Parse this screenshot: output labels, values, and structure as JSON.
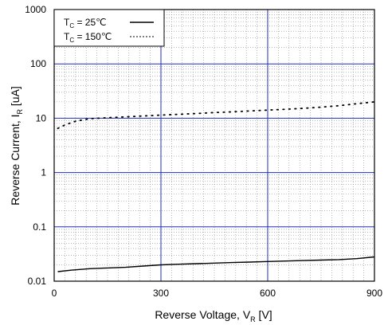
{
  "chart_data": {
    "type": "line",
    "xlabel": {
      "text": "Reverse Voltage, V",
      "sub": "R",
      "unit": " [V]"
    },
    "ylabel": {
      "text": "Reverse Current, I",
      "sub": "R",
      "unit": " [uA]"
    },
    "xlim": [
      0,
      900
    ],
    "ylim": [
      0.01,
      1000
    ],
    "yscale": "log",
    "x_ticks": [
      0,
      300,
      600,
      900
    ],
    "x_tick_labels": [
      "0",
      "300",
      "600",
      "900"
    ],
    "y_ticks": [
      0.01,
      0.1,
      1,
      10,
      100,
      1000
    ],
    "y_tick_labels": [
      "0.01",
      "0.1",
      "1",
      "10",
      "100",
      "1000"
    ],
    "grid": {
      "major": true,
      "minor": true,
      "major_color": "#1f2fbf",
      "minor_color": "#8a8a8a"
    },
    "legend_position": "top-left",
    "series": [
      {
        "legend_prefix": "T",
        "legend_sub": "C",
        "legend_value": " =   25℃",
        "style": "solid",
        "color": "#000000",
        "x": [
          10,
          50,
          100,
          150,
          200,
          250,
          300,
          350,
          400,
          450,
          500,
          550,
          600,
          650,
          700,
          750,
          800,
          850,
          900
        ],
        "y": [
          0.015,
          0.016,
          0.017,
          0.0175,
          0.018,
          0.019,
          0.02,
          0.0205,
          0.021,
          0.0215,
          0.022,
          0.0225,
          0.023,
          0.0235,
          0.024,
          0.0245,
          0.025,
          0.026,
          0.028
        ]
      },
      {
        "legend_prefix": "T",
        "legend_sub": "C",
        "legend_value": " = 150℃",
        "style": "dotted",
        "color": "#000000",
        "x": [
          10,
          30,
          60,
          100,
          150,
          200,
          250,
          300,
          350,
          400,
          450,
          500,
          550,
          600,
          650,
          700,
          750,
          800,
          850,
          900
        ],
        "y": [
          6.5,
          7.5,
          8.8,
          9.8,
          10.2,
          10.6,
          11.0,
          11.4,
          11.8,
          12.2,
          12.7,
          13.1,
          13.6,
          14.1,
          14.6,
          15.2,
          16.0,
          17.0,
          18.5,
          20.0
        ]
      }
    ]
  }
}
